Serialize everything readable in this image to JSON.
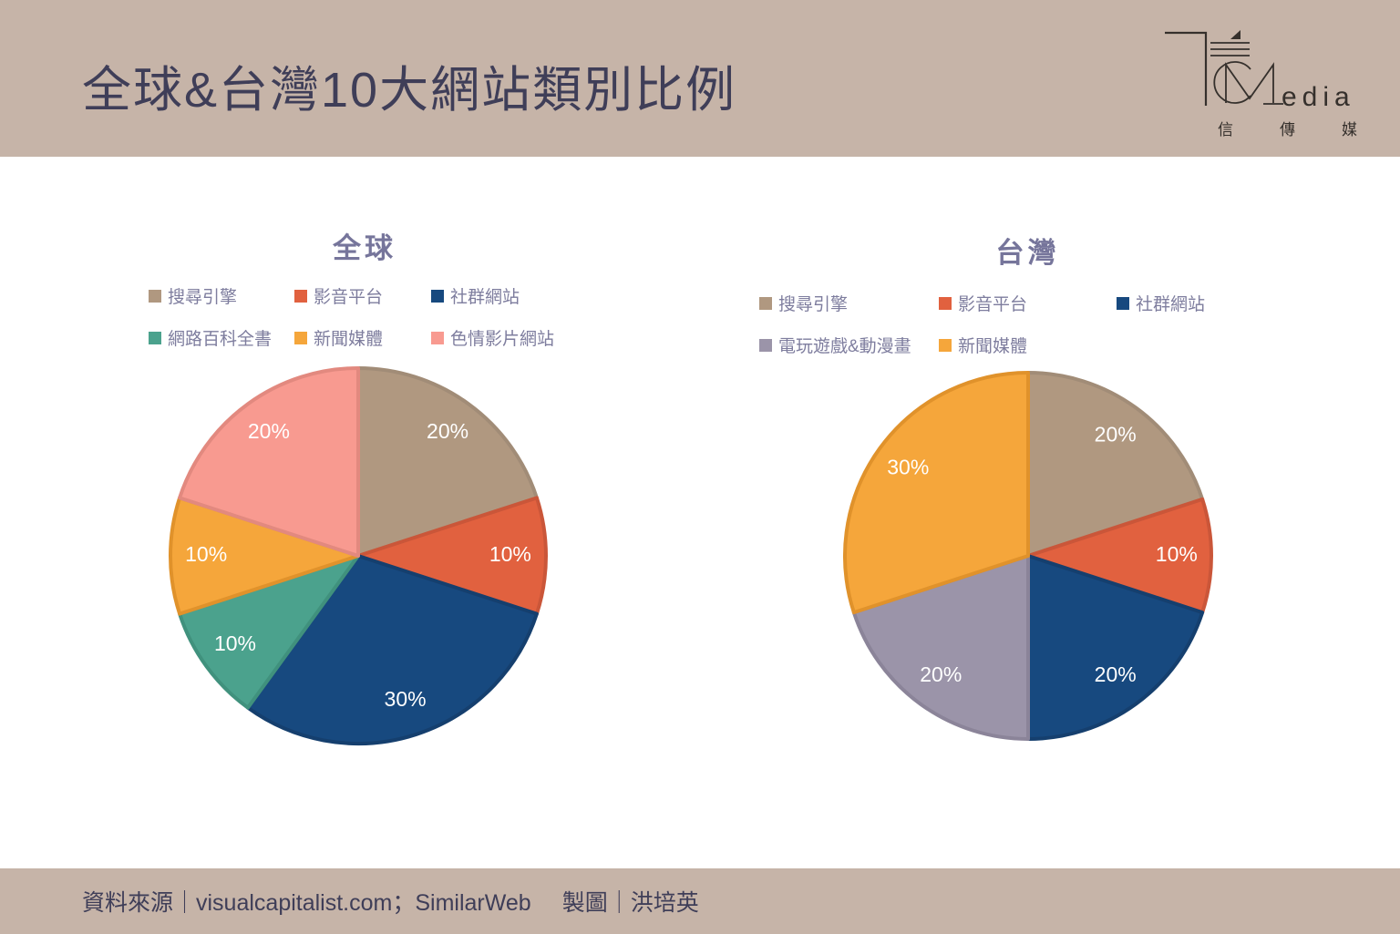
{
  "header": {
    "title": "全球&台灣10大網站類別比例",
    "logo": {
      "wordmark_suffix": "edia",
      "subtitle_chars": [
        "信",
        "傳",
        "媒"
      ]
    }
  },
  "colors": {
    "band_background": "#c6b4a8",
    "header_text": "#3f3e58",
    "chart_title_text": "#76759b",
    "legend_text": "#7e7d9e",
    "data_label_text": "#ffffff"
  },
  "chart_data": [
    {
      "type": "pie",
      "title": "全球",
      "unit": "%",
      "rotation_deg": 0,
      "direction": "clockwise",
      "legend_position": "top",
      "legend_columns": 3,
      "slices": [
        {
          "label": "搜尋引擎",
          "value": 20,
          "color": "#b09880",
          "border_color": "#a18c77"
        },
        {
          "label": "影音平台",
          "value": 10,
          "color": "#e1613f",
          "border_color": "#ca5639"
        },
        {
          "label": "社群網站",
          "value": 30,
          "color": "#17497f",
          "border_color": "#153f6e"
        },
        {
          "label": "網路百科全書",
          "value": 10,
          "color": "#4ba28d",
          "border_color": "#40917d"
        },
        {
          "label": "新聞媒體",
          "value": 10,
          "color": "#f5a63b",
          "border_color": "#e0922b"
        },
        {
          "label": "色情影片網站",
          "value": 20,
          "color": "#f89a90",
          "border_color": "#e2897f"
        }
      ],
      "data_labels": [
        "20%",
        "10%",
        "30%",
        "10%",
        "10%",
        "20%"
      ]
    },
    {
      "type": "pie",
      "title": "台灣",
      "unit": "%",
      "rotation_deg": 0,
      "direction": "clockwise",
      "legend_position": "top",
      "legend_columns": 3,
      "slices": [
        {
          "label": "搜尋引擎",
          "value": 20,
          "color": "#b09880",
          "border_color": "#a18c77"
        },
        {
          "label": "影音平台",
          "value": 10,
          "color": "#e1613f",
          "border_color": "#ca5639"
        },
        {
          "label": "社群網站",
          "value": 20,
          "color": "#17497f",
          "border_color": "#153f6e"
        },
        {
          "label": "電玩遊戲&動漫畫",
          "value": 20,
          "color": "#9b94a9",
          "border_color": "#8b8499"
        },
        {
          "label": "新聞媒體",
          "value": 30,
          "color": "#f5a63b",
          "border_color": "#e0922b"
        }
      ],
      "data_labels": [
        "20%",
        "10%",
        "20%",
        "20%",
        "30%"
      ]
    }
  ],
  "footer": {
    "source_text": "資料來源｜visualcapitalist.com；SimilarWeb",
    "credit_text": "製圖｜洪培英"
  }
}
